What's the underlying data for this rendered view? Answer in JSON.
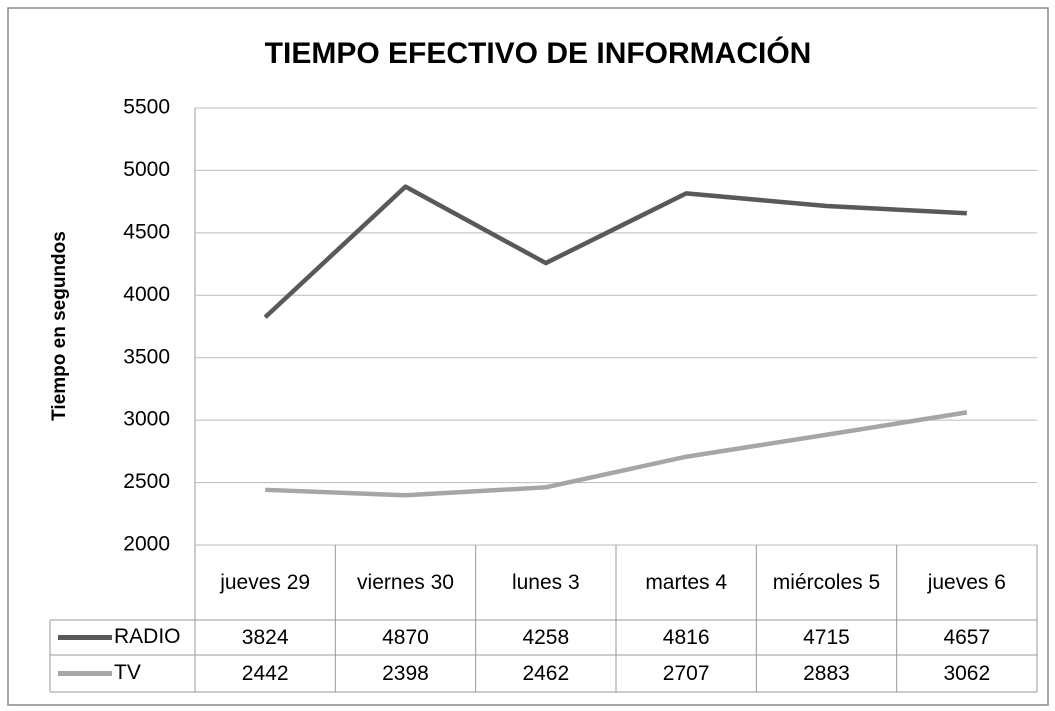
{
  "chart_data": {
    "type": "line",
    "title": "TIEMPO EFECTIVO DE INFORMACIÓN",
    "y_label": "Tiempo en segundos",
    "categories": [
      "jueves 29",
      "viernes 30",
      "lunes 3",
      "martes 4",
      "miércoles 5",
      "jueves 6"
    ],
    "series": [
      {
        "name": "RADIO",
        "color": "#595959",
        "values": [
          3824,
          4870,
          4258,
          4816,
          4715,
          4657
        ]
      },
      {
        "name": "TV",
        "color": "#a6a6a6",
        "values": [
          2442,
          2398,
          2462,
          2707,
          2883,
          3062
        ]
      }
    ],
    "ylim": [
      2000,
      5500
    ],
    "yticks": [
      2000,
      2500,
      3000,
      3500,
      4000,
      4500,
      5000,
      5500
    ],
    "grid": true,
    "data_table": true
  }
}
